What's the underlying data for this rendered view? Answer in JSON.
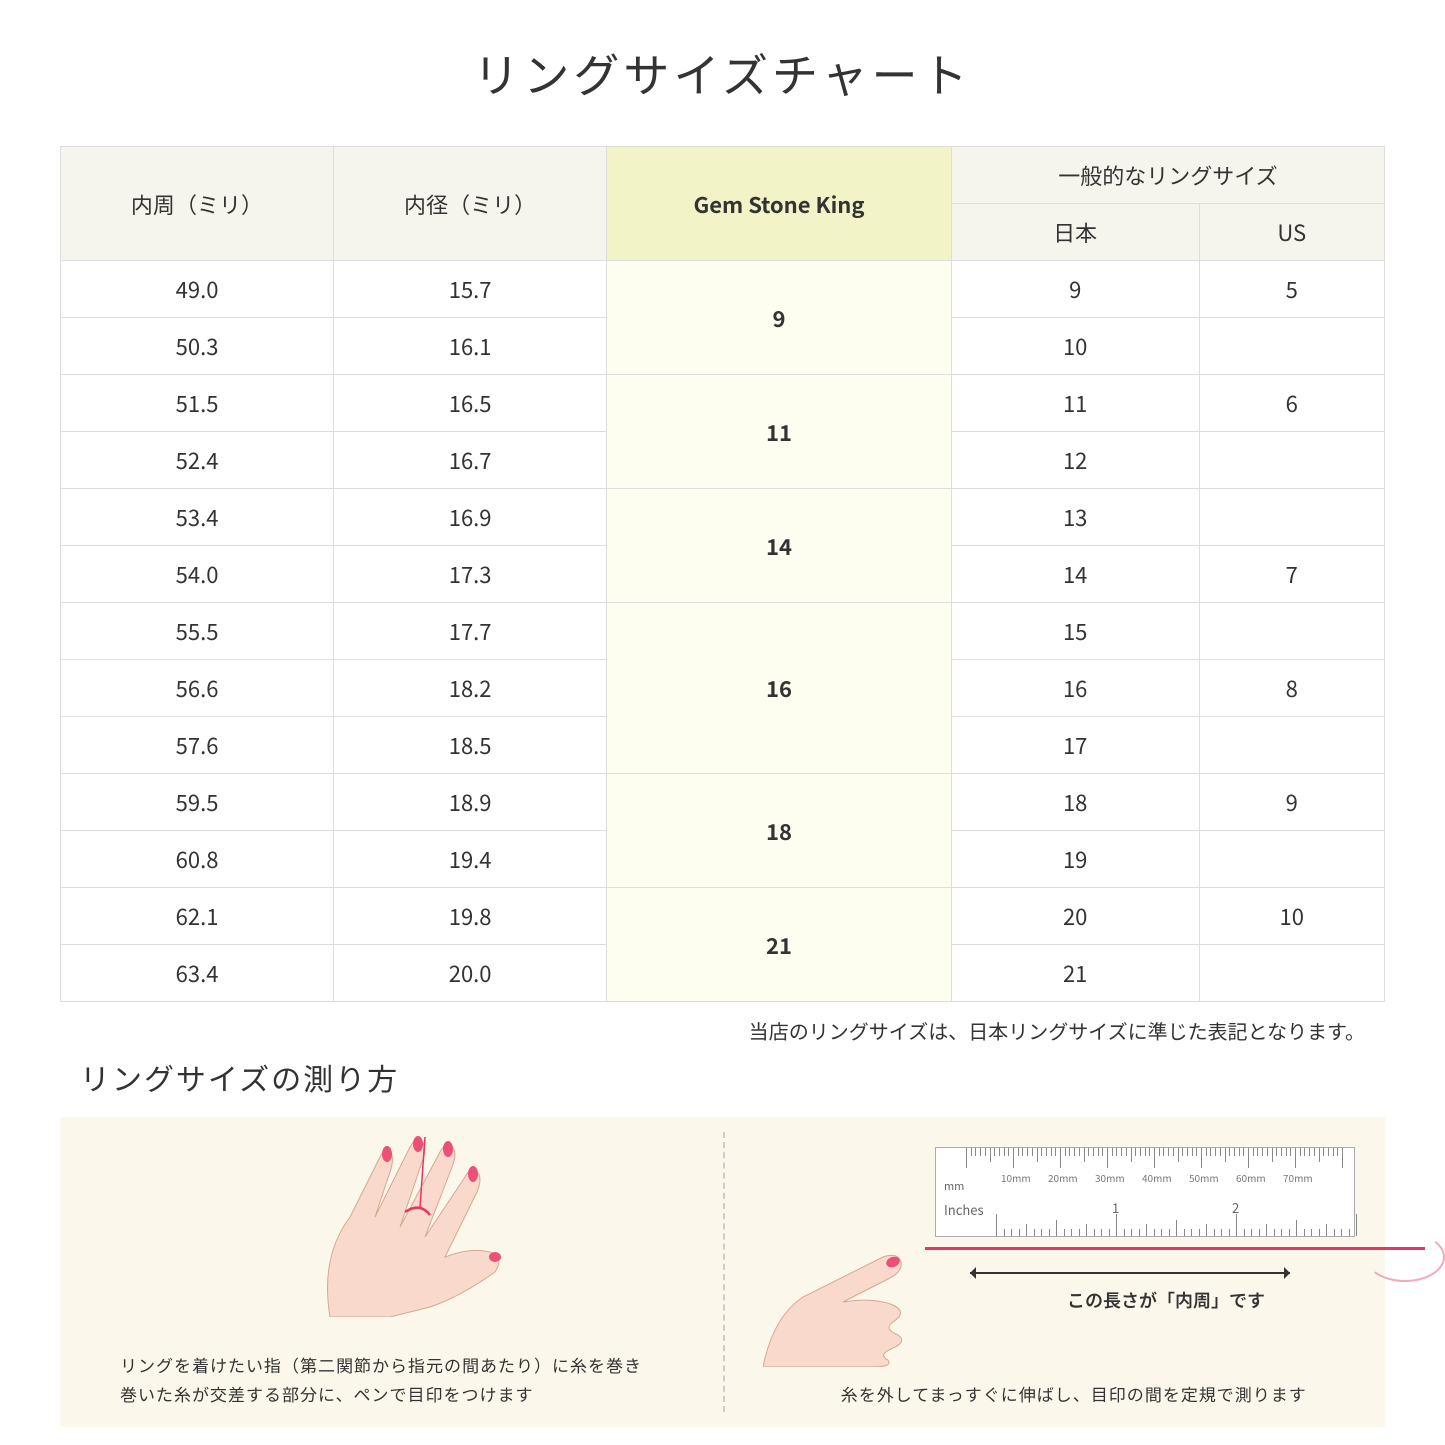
{
  "title": "リングサイズチャート",
  "headers": {
    "circumference": "内周（ミリ）",
    "diameter": "内径（ミリ）",
    "gsk": "Gem Stone King",
    "general": "一般的なリングサイズ",
    "japan": "日本",
    "us": "US"
  },
  "rows": [
    {
      "c": "49.0",
      "d": "15.7",
      "jp": "9",
      "us": "5"
    },
    {
      "c": "50.3",
      "d": "16.1",
      "jp": "10",
      "us": ""
    },
    {
      "c": "51.5",
      "d": "16.5",
      "jp": "11",
      "us": "6"
    },
    {
      "c": "52.4",
      "d": "16.7",
      "jp": "12",
      "us": ""
    },
    {
      "c": "53.4",
      "d": "16.9",
      "jp": "13",
      "us": ""
    },
    {
      "c": "54.0",
      "d": "17.3",
      "jp": "14",
      "us": "7"
    },
    {
      "c": "55.5",
      "d": "17.7",
      "jp": "15",
      "us": ""
    },
    {
      "c": "56.6",
      "d": "18.2",
      "jp": "16",
      "us": "8"
    },
    {
      "c": "57.6",
      "d": "18.5",
      "jp": "17",
      "us": ""
    },
    {
      "c": "59.5",
      "d": "18.9",
      "jp": "18",
      "us": "9"
    },
    {
      "c": "60.8",
      "d": "19.4",
      "jp": "19",
      "us": ""
    },
    {
      "c": "62.1",
      "d": "19.8",
      "jp": "20",
      "us": "10"
    },
    {
      "c": "63.4",
      "d": "20.0",
      "jp": "21",
      "us": ""
    }
  ],
  "gsk_groups": [
    {
      "span": 2,
      "val": "9"
    },
    {
      "span": 2,
      "val": "11"
    },
    {
      "span": 2,
      "val": "14"
    },
    {
      "span": 3,
      "val": "16"
    },
    {
      "span": 2,
      "val": "18"
    },
    {
      "span": 2,
      "val": "21"
    }
  ],
  "note": "当店のリングサイズは、日本リングサイズに準じた表記となります。",
  "subtitle": "リングサイズの測り方",
  "guide": {
    "left_caption": "リングを着けたい指（第二関節から指元の間あたり）に糸を巻き\n巻いた糸が交差する部分に、ペンで目印をつけます",
    "right_caption": "糸を外してまっすぐに伸ばし、目印の間を定規で測ります",
    "arrow_label": "この長さが「内周」です",
    "ruler_mm": "mm",
    "ruler_inches": "Inches",
    "ruler_mm_marks": [
      "10mm",
      "20mm",
      "30mm",
      "40mm",
      "50mm",
      "60mm",
      "70mm"
    ],
    "ruler_in_marks": [
      "1",
      "2"
    ]
  },
  "colors": {
    "header_bg": "#f5f5ed",
    "highlight_bg": "#f3f3c8",
    "highlight_cell_bg": "#fdfdf0",
    "guide_bg": "#fbf8eb",
    "thread": "#e5375f",
    "skin": "#f9d9cc",
    "nail": "#ed4f76"
  }
}
